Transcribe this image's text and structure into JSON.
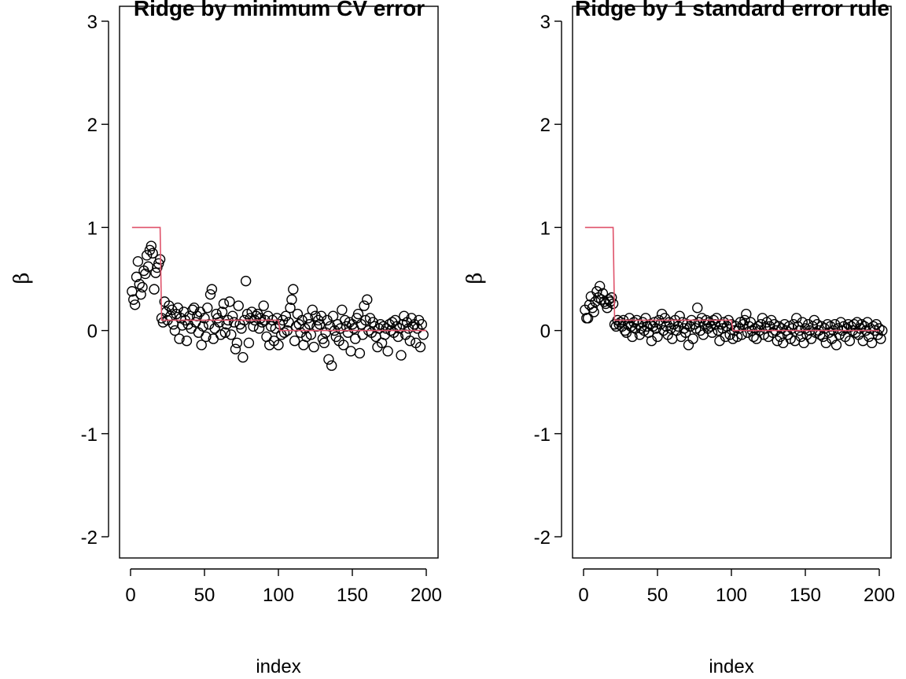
{
  "chart_data": [
    {
      "type": "scatter",
      "title": "Ridge by minimum CV error",
      "xlabel": "index",
      "ylabel": "β",
      "xlim": [
        0,
        200
      ],
      "ylim": [
        -2,
        3
      ],
      "xticks": [
        "0",
        "50",
        "100",
        "150",
        "200"
      ],
      "yticks": [
        "-2",
        "-1",
        "0",
        "1",
        "2",
        "3"
      ],
      "grid": false,
      "points_color": "#000000",
      "step_color": "#DF536B",
      "true_beta_step": [
        {
          "x_from": 1,
          "x_to": 20,
          "value": 1.0
        },
        {
          "x_from": 21,
          "x_to": 100,
          "value": 0.1
        },
        {
          "x_from": 101,
          "x_to": 200,
          "value": 0.0
        }
      ],
      "estimates": [
        0.38,
        0.3,
        0.25,
        0.52,
        0.67,
        0.45,
        0.35,
        0.42,
        0.58,
        0.55,
        0.73,
        0.62,
        0.78,
        0.82,
        0.75,
        0.4,
        0.56,
        0.61,
        0.65,
        0.69,
        0.12,
        0.08,
        0.28,
        0.18,
        0.1,
        0.24,
        0.14,
        0.2,
        0.06,
        0.0,
        0.16,
        0.22,
        -0.08,
        0.12,
        0.05,
        0.18,
        0.1,
        -0.1,
        0.06,
        0.14,
        0.02,
        0.2,
        0.22,
        0.08,
        0.14,
        -0.02,
        0.18,
        -0.14,
        0.04,
        0.12,
        -0.06,
        0.22,
        0.06,
        0.35,
        0.4,
        -0.08,
        0.02,
        0.16,
        0.12,
        0.08,
        -0.04,
        0.18,
        0.26,
        -0.02,
        0.06,
        0.1,
        0.28,
        -0.04,
        0.14,
        0.08,
        -0.18,
        -0.12,
        0.24,
        0.06,
        0.02,
        -0.26,
        0.1,
        0.48,
        0.16,
        -0.12,
        0.12,
        0.18,
        0.04,
        0.1,
        0.14,
        0.16,
        0.02,
        0.12,
        0.08,
        0.24,
        0.1,
        -0.06,
        0.14,
        -0.14,
        0.04,
        0.1,
        -0.1,
        0.02,
        0.12,
        -0.14,
        0.06,
        -0.04,
        0.1,
        -0.02,
        0.14,
        0.0,
        0.08,
        0.22,
        0.3,
        0.4,
        -0.1,
        0.04,
        0.16,
        0.06,
        -0.02,
        0.1,
        -0.14,
        0.02,
        -0.06,
        0.12,
        0.06,
        -0.04,
        0.2,
        -0.16,
        0.14,
        0.04,
        0.1,
        0.06,
        0.14,
        -0.08,
        -0.12,
        -0.02,
        0.1,
        -0.28,
        0.04,
        -0.34,
        0.14,
        0.0,
        -0.06,
        0.06,
        -0.1,
        0.02,
        0.2,
        -0.14,
        0.1,
        0.04,
        -0.02,
        0.08,
        -0.2,
        0.06,
        0.02,
        -0.08,
        0.12,
        0.16,
        -0.22,
        0.06,
        -0.04,
        0.24,
        0.1,
        0.3,
        0.0,
        0.12,
        -0.02,
        0.08,
        0.04,
        -0.06,
        -0.16,
        0.02,
        0.06,
        -0.12,
        0.04,
        -0.04,
        0.02,
        -0.2,
        0.06,
        0.0,
        0.08,
        -0.02,
        0.1,
        0.04,
        -0.06,
        0.02,
        -0.24,
        0.06,
        0.14,
        -0.04,
        0.08,
        0.02,
        -0.1,
        0.12,
        0.04,
        0.06,
        -0.12,
        0.02,
        0.1,
        -0.16,
        0.06,
        -0.04
      ]
    },
    {
      "type": "scatter",
      "title": "Ridge by 1 standard error rule",
      "xlabel": "index",
      "ylabel": "β",
      "xlim": [
        0,
        200
      ],
      "ylim": [
        -2,
        3
      ],
      "xticks": [
        "0",
        "50",
        "100",
        "150",
        "200"
      ],
      "yticks": [
        "-2",
        "-1",
        "0",
        "1",
        "2",
        "3"
      ],
      "grid": false,
      "points_color": "#000000",
      "step_color": "#DF536B",
      "true_beta_step": [
        {
          "x_from": 1,
          "x_to": 20,
          "value": 1.0
        },
        {
          "x_from": 21,
          "x_to": 100,
          "value": 0.1
        },
        {
          "x_from": 101,
          "x_to": 200,
          "value": 0.0
        }
      ],
      "estimates": [
        0.2,
        0.12,
        0.12,
        0.25,
        0.33,
        0.22,
        0.18,
        0.28,
        0.38,
        0.32,
        0.43,
        0.3,
        0.36,
        0.28,
        0.26,
        0.22,
        0.3,
        0.28,
        0.32,
        0.26,
        0.06,
        0.04,
        0.1,
        0.06,
        0.08,
        0.04,
        0.1,
        0.0,
        -0.02,
        0.06,
        0.12,
        0.04,
        -0.06,
        0.08,
        0.02,
        0.1,
        0.06,
        -0.04,
        0.02,
        0.08,
        0.0,
        0.12,
        0.04,
        -0.02,
        0.06,
        -0.1,
        0.04,
        0.08,
        0.02,
        -0.06,
        0.1,
        0.06,
        0.16,
        0.0,
        0.12,
        0.04,
        -0.04,
        0.08,
        0.02,
        -0.08,
        0.06,
        0.1,
        0.0,
        0.04,
        0.14,
        -0.06,
        0.08,
        0.02,
        -0.02,
        0.06,
        -0.14,
        0.04,
        0.1,
        -0.08,
        0.06,
        0.02,
        0.22,
        0.08,
        0.0,
        0.12,
        -0.04,
        0.06,
        0.1,
        0.02,
        0.08,
        0.04,
        -0.02,
        0.1,
        0.06,
        0.12,
        0.0,
        -0.1,
        0.06,
        0.02,
        0.08,
        -0.06,
        0.04,
        0.1,
        -0.04,
        0.06,
        -0.08,
        0.0,
        0.04,
        -0.06,
        0.02,
        0.08,
        -0.04,
        0.06,
        0.1,
        0.16,
        -0.02,
        0.04,
        0.08,
        0.0,
        -0.06,
        0.02,
        -0.08,
        0.04,
        0.0,
        0.06,
        0.12,
        -0.04,
        0.02,
        0.08,
        -0.06,
        0.04,
        0.1,
        -0.02,
        0.06,
        0.0,
        -0.1,
        0.04,
        -0.06,
        0.02,
        -0.12,
        0.06,
        0.0,
        -0.04,
        0.04,
        -0.08,
        0.02,
        0.06,
        -0.1,
        0.12,
        0.04,
        0.0,
        -0.06,
        0.08,
        -0.12,
        0.02,
        -0.04,
        0.06,
        0.0,
        -0.08,
        0.04,
        0.1,
        -0.02,
        0.06,
        0.0,
        -0.04,
        0.04,
        -0.06,
        0.02,
        -0.12,
        0.06,
        -0.02,
        0.04,
        -0.08,
        0.0,
        0.06,
        -0.14,
        0.02,
        -0.04,
        0.08,
        0.0,
        0.04,
        -0.06,
        0.02,
        0.06,
        -0.1,
        0.04,
        0.0,
        0.06,
        -0.02,
        0.08,
        -0.04,
        0.02,
        0.06,
        -0.1,
        0.04,
        0.0,
        0.08,
        -0.06,
        0.02,
        -0.12,
        0.04,
        0.0,
        0.06,
        -0.04,
        0.02,
        -0.08,
        0.0
      ]
    }
  ]
}
